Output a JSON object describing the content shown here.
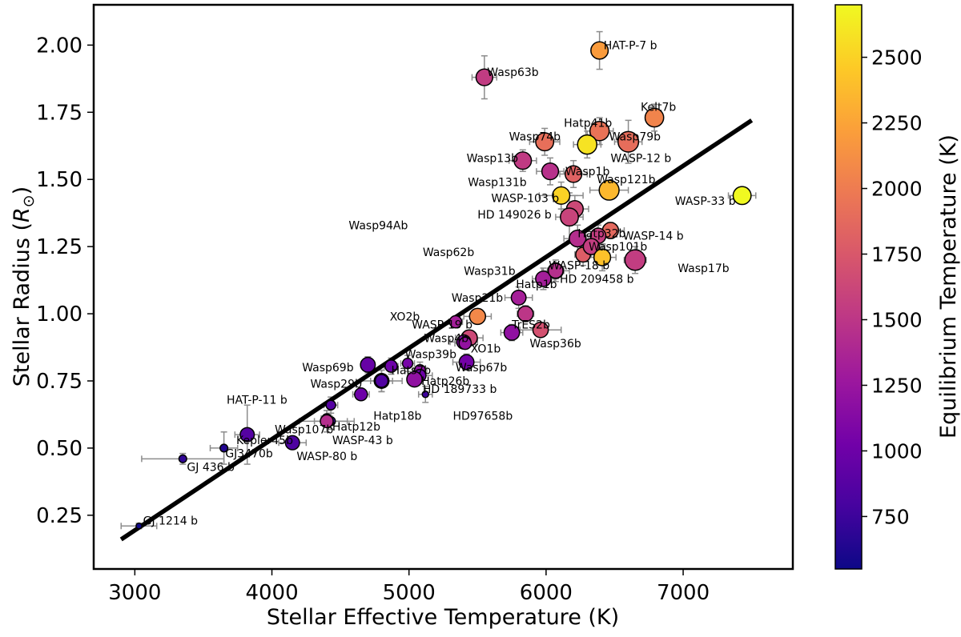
{
  "chart_data": {
    "type": "scatter",
    "title": "",
    "xlabel": "Stellar Effective Temperature (K)",
    "ylabel": "Stellar Radius (R☉)",
    "xlim": [
      2700,
      7800
    ],
    "ylim": [
      0.05,
      2.15
    ],
    "xticks": [
      3000,
      4000,
      5000,
      6000,
      7000
    ],
    "yticks": [
      0.25,
      0.5,
      0.75,
      1.0,
      1.25,
      1.5,
      1.75,
      2.0
    ],
    "xtick_labels": [
      "3000",
      "4000",
      "5000",
      "6000",
      "7000"
    ],
    "ytick_labels": [
      "0.25",
      "0.50",
      "0.75",
      "1.00",
      "1.25",
      "1.50",
      "1.75",
      "2.00"
    ],
    "grid": false,
    "colorbar": {
      "label": "Equilibrium Temperature (K)",
      "range": [
        550,
        2700
      ],
      "ticks": [
        750,
        1000,
        1250,
        1500,
        1750,
        2000,
        2250,
        2500
      ],
      "tick_labels": [
        "750",
        "1000",
        "1250",
        "1500",
        "1750",
        "2000",
        "2250",
        "2500"
      ],
      "colormap": [
        "#0d0887",
        "#46039f",
        "#7201a8",
        "#9c179e",
        "#bd3786",
        "#d8576b",
        "#ed7953",
        "#fb9f3a",
        "#fdca26",
        "#f0f921"
      ]
    },
    "fit_line": {
      "x": [
        2900,
        7500
      ],
      "y": [
        0.16,
        1.72
      ],
      "color": "#000000"
    },
    "points": [
      {
        "name": "HAT-P-7 b",
        "teff": 6390,
        "radius": 1.98,
        "teq": 2200,
        "size": 2.7,
        "xerr": 60,
        "yerr": 0.07
      },
      {
        "name": "Wasp63b",
        "teff": 5550,
        "radius": 1.88,
        "teq": 1540,
        "size": 2.6,
        "xerr": 90,
        "yerr": 0.08
      },
      {
        "name": "Kelt7b",
        "teff": 6790,
        "radius": 1.73,
        "teq": 2050,
        "size": 2.9,
        "xerr": 60,
        "yerr": 0.05
      },
      {
        "name": "Hatp41b",
        "teff": 6390,
        "radius": 1.68,
        "teq": 1940,
        "size": 3.0,
        "xerr": 100,
        "yerr": 0.05
      },
      {
        "name": "Wasp74b",
        "teff": 5990,
        "radius": 1.64,
        "teq": 1910,
        "size": 2.8,
        "xerr": 110,
        "yerr": 0.05
      },
      {
        "name": "Wasp79b",
        "teff": 6600,
        "radius": 1.64,
        "teq": 1900,
        "size": 3.2,
        "xerr": 100,
        "yerr": 0.08
      },
      {
        "name": "",
        "teff": 6300,
        "radius": 1.63,
        "teq": 2590,
        "size": 3.0,
        "xerr": 100,
        "yerr": 0.05
      },
      {
        "name": "Wasp13b",
        "teff": 5830,
        "radius": 1.57,
        "teq": 1530,
        "size": 2.7,
        "xerr": 100,
        "yerr": 0.04
      },
      {
        "name": "Wasp131b",
        "teff": 6030,
        "radius": 1.53,
        "teq": 1460,
        "size": 2.6,
        "xerr": 100,
        "yerr": 0.05
      },
      {
        "name": "Wasp1b",
        "teff": 6200,
        "radius": 1.52,
        "teq": 1820,
        "size": 2.6,
        "xerr": 100,
        "yerr": 0.05
      },
      {
        "name": "Wasp121b",
        "teff": 6460,
        "radius": 1.46,
        "teq": 2360,
        "size": 3.1,
        "xerr": 140,
        "yerr": 0.03
      },
      {
        "name": "WASP-103 b",
        "teff": 6110,
        "radius": 1.44,
        "teq": 2500,
        "size": 2.7,
        "xerr": 160,
        "yerr": 0.05
      },
      {
        "name": "WASP-33 b",
        "teff": 7430,
        "radius": 1.44,
        "teq": 2710,
        "size": 2.8,
        "xerr": 100,
        "yerr": 0.03
      },
      {
        "name": "HD 149026 b",
        "teff": 6210,
        "radius": 1.39,
        "teq": 1640,
        "size": 2.6,
        "xerr": 100,
        "yerr": 0.05
      },
      {
        "name": "Wasp94Ab",
        "teff": 6170,
        "radius": 1.36,
        "teq": 1600,
        "size": 2.8,
        "xerr": 100,
        "yerr": 0.09
      },
      {
        "name": "Hatp32b",
        "teff": 6270,
        "radius": 1.22,
        "teq": 1790,
        "size": 2.3,
        "xerr": 60,
        "yerr": 0.04
      },
      {
        "name": "WASP-14 b",
        "teff": 6470,
        "radius": 1.31,
        "teq": 1870,
        "size": 2.5,
        "xerr": 100,
        "yerr": 0.03
      },
      {
        "name": "Wasp62b",
        "teff": 6230,
        "radius": 1.28,
        "teq": 1440,
        "size": 2.6,
        "xerr": 100,
        "yerr": 0.05
      },
      {
        "name": "",
        "teff": 6380,
        "radius": 1.29,
        "teq": 1560,
        "size": 2.4,
        "xerr": 90,
        "yerr": 0.04
      },
      {
        "name": "Wasp101b",
        "teff": 6330,
        "radius": 1.25,
        "teq": 1560,
        "size": 2.5,
        "xerr": 100,
        "yerr": 0.04
      },
      {
        "name": "WASP-18 b",
        "teff": 6410,
        "radius": 1.21,
        "teq": 2410,
        "size": 2.6,
        "xerr": 100,
        "yerr": 0.05
      },
      {
        "name": "Wasp17b",
        "teff": 6650,
        "radius": 1.2,
        "teq": 1550,
        "size": 3.2,
        "xerr": 80,
        "yerr": 0.05
      },
      {
        "name": "Wasp31b",
        "teff": 6070,
        "radius": 1.16,
        "teq": 1390,
        "size": 2.4,
        "xerr": 100,
        "yerr": 0.04
      },
      {
        "name": "Hatp1b",
        "teff": 5980,
        "radius": 1.13,
        "teq": 1320,
        "size": 2.4,
        "xerr": 80,
        "yerr": 0.04
      },
      {
        "name": "HD 209458 b",
        "teff": 6070,
        "radius": 1.16,
        "teq": 1450,
        "size": 2.3,
        "xerr": 60,
        "yerr": 0.03
      },
      {
        "name": "Wasp21b",
        "teff": 5800,
        "radius": 1.06,
        "teq": 1330,
        "size": 2.3,
        "xerr": 100,
        "yerr": 0.04
      },
      {
        "name": "TrES2b",
        "teff": 5850,
        "radius": 1.0,
        "teq": 1500,
        "size": 2.4,
        "xerr": 60,
        "yerr": 0.03
      },
      {
        "name": "WASP-19 b",
        "teff": 5500,
        "radius": 0.99,
        "teq": 2080,
        "size": 2.5,
        "xerr": 100,
        "yerr": 0.02
      },
      {
        "name": "XO2b",
        "teff": 5340,
        "radius": 0.97,
        "teq": 1320,
        "size": 1.9,
        "xerr": 50,
        "yerr": 0.02
      },
      {
        "name": "Wasp36b",
        "teff": 5960,
        "radius": 0.94,
        "teq": 1700,
        "size": 2.4,
        "xerr": 150,
        "yerr": 0.02
      },
      {
        "name": "",
        "teff": 5750,
        "radius": 0.93,
        "teq": 1200,
        "size": 2.4,
        "xerr": 80,
        "yerr": 0.03
      },
      {
        "name": "Wasp4b",
        "teff": 5440,
        "radius": 0.91,
        "teq": 1640,
        "size": 2.5,
        "xerr": 100,
        "yerr": 0.02
      },
      {
        "name": "Wasp39b",
        "teff": 5400,
        "radius": 0.895,
        "teq": 1120,
        "size": 2.2,
        "xerr": 100,
        "yerr": 0.02
      },
      {
        "name": "XO1b",
        "teff": 5410,
        "radius": 0.89,
        "teq": 1210,
        "size": 1.9,
        "xerr": 75,
        "yerr": 0.02
      },
      {
        "name": "Wasp67b",
        "teff": 5420,
        "radius": 0.82,
        "teq": 1040,
        "size": 2.3,
        "xerr": 100,
        "yerr": 0.03
      },
      {
        "name": "Wasp69b",
        "teff": 4700,
        "radius": 0.81,
        "teq": 960,
        "size": 2.3,
        "xerr": 50,
        "yerr": 0.03
      },
      {
        "name": "Hats7b",
        "teff": 4990,
        "radius": 0.815,
        "teq": 1050,
        "size": 1.6,
        "xerr": 50,
        "yerr": 0.03
      },
      {
        "name": "",
        "teff": 4870,
        "radius": 0.805,
        "teq": 1000,
        "size": 1.9,
        "xerr": 50,
        "yerr": 0.03
      },
      {
        "name": "",
        "teff": 5080,
        "radius": 0.79,
        "teq": 1170,
        "size": 1.7,
        "xerr": 50,
        "yerr": 0.03
      },
      {
        "name": "Hatp26b",
        "teff": 5080,
        "radius": 0.77,
        "teq": 1000,
        "size": 1.9,
        "xerr": 90,
        "yerr": 0.03
      },
      {
        "name": "Wasp29b",
        "teff": 4800,
        "radius": 0.75,
        "teq": 990,
        "size": 2.3,
        "xerr": 150,
        "yerr": 0.04
      },
      {
        "name": "HD 189733 b",
        "teff": 5040,
        "radius": 0.756,
        "teq": 1200,
        "size": 2.4,
        "xerr": 50,
        "yerr": 0.02
      },
      {
        "name": "Hatp18b",
        "teff": 4800,
        "radius": 0.75,
        "teq": 850,
        "size": 2.0,
        "xerr": 80,
        "yerr": 0.04
      },
      {
        "name": "",
        "teff": 4650,
        "radius": 0.7,
        "teq": 1000,
        "size": 2.0,
        "xerr": 60,
        "yerr": 0.02
      },
      {
        "name": "HD97658b",
        "teff": 5120,
        "radius": 0.7,
        "teq": 750,
        "size": 1.0,
        "xerr": 50,
        "yerr": 0.03
      },
      {
        "name": "HAT-P-11 b",
        "teff": 4430,
        "radius": 0.66,
        "teq": 870,
        "size": 1.5,
        "xerr": 50,
        "yerr": 0.03
      },
      {
        "name": "Hatp12b",
        "teff": 4400,
        "radius": 0.61,
        "teq": 960,
        "size": 1.5,
        "xerr": 40,
        "yerr": 0.03
      },
      {
        "name": "Wasp107b",
        "teff": 4430,
        "radius": 0.6,
        "teq": 770,
        "size": 1.4,
        "xerr": 120,
        "yerr": 0.03
      },
      {
        "name": "WASP-43 b",
        "teff": 4400,
        "radius": 0.6,
        "teq": 1440,
        "size": 2.0,
        "xerr": 200,
        "yerr": 0.04
      },
      {
        "name": "Kepler45b",
        "teff": 3820,
        "radius": 0.55,
        "teq": 870,
        "size": 2.2,
        "xerr": 90,
        "yerr": 0.11
      },
      {
        "name": "WASP-80 b",
        "teff": 4150,
        "radius": 0.52,
        "teq": 830,
        "size": 2.2,
        "xerr": 100,
        "yerr": 0.02
      },
      {
        "name": "GJ3470b",
        "teff": 3650,
        "radius": 0.5,
        "teq": 640,
        "size": 1.2,
        "xerr": 100,
        "yerr": 0.06
      },
      {
        "name": "GJ 436 b",
        "teff": 3350,
        "radius": 0.46,
        "teq": 700,
        "size": 1.2,
        "xerr": 300,
        "yerr": 0.02
      },
      {
        "name": "GJ 1214 b",
        "teff": 3030,
        "radius": 0.21,
        "teq": 560,
        "size": 0.9,
        "xerr": 130,
        "yerr": 0.01
      }
    ],
    "labels": [
      {
        "text": "HAT-P-7 b",
        "teff": 6420,
        "radius": 2.0
      },
      {
        "text": "Wasp63b",
        "teff": 5570,
        "radius": 1.9
      },
      {
        "text": "Kelt7b",
        "teff": 6690,
        "radius": 1.77
      },
      {
        "text": "Hatp41b",
        "teff": 6130,
        "radius": 1.71
      },
      {
        "text": "Wasp74b",
        "teff": 5730,
        "radius": 1.66
      },
      {
        "text": "Wasp79b",
        "teff": 6460,
        "radius": 1.66
      },
      {
        "text": "WASP-12 b",
        "teff": 6470,
        "radius": 1.58
      },
      {
        "text": "Wasp13b",
        "teff": 5420,
        "radius": 1.58
      },
      {
        "text": "Wasp131b",
        "teff": 5430,
        "radius": 1.49
      },
      {
        "text": "Wasp1b",
        "teff": 6140,
        "radius": 1.53
      },
      {
        "text": "Wasp121b",
        "teff": 6370,
        "radius": 1.5
      },
      {
        "text": "WASP-103 b",
        "teff": 5600,
        "radius": 1.43
      },
      {
        "text": "WASP-33 b",
        "teff": 6940,
        "radius": 1.42
      },
      {
        "text": "HD 149026 b",
        "teff": 5500,
        "radius": 1.37
      },
      {
        "text": "Wasp94Ab",
        "teff": 4560,
        "radius": 1.33
      },
      {
        "text": "Hatp32b",
        "teff": 6230,
        "radius": 1.3
      },
      {
        "text": "WASP-14 b",
        "teff": 6560,
        "radius": 1.29
      },
      {
        "text": "Wasp62b",
        "teff": 5100,
        "radius": 1.23
      },
      {
        "text": "Wasp31b",
        "teff": 5400,
        "radius": 1.16
      },
      {
        "text": "Wasp101b",
        "teff": 6310,
        "radius": 1.25
      },
      {
        "text": "WASP-18 b",
        "teff": 6020,
        "radius": 1.18
      },
      {
        "text": "Wasp17b",
        "teff": 6960,
        "radius": 1.17
      },
      {
        "text": "Hatp1b",
        "teff": 5780,
        "radius": 1.11
      },
      {
        "text": "HD 209458 b",
        "teff": 6100,
        "radius": 1.13
      },
      {
        "text": "Wasp21b",
        "teff": 5310,
        "radius": 1.06
      },
      {
        "text": "WASP-19 b",
        "teff": 5020,
        "radius": 0.96
      },
      {
        "text": "TrES2b",
        "teff": 5750,
        "radius": 0.96
      },
      {
        "text": "XO2b",
        "teff": 4860,
        "radius": 0.99
      },
      {
        "text": "Wasp36b",
        "teff": 5880,
        "radius": 0.89
      },
      {
        "text": "Wasp4b",
        "teff": 5110,
        "radius": 0.91
      },
      {
        "text": "XO1b",
        "teff": 5450,
        "radius": 0.87
      },
      {
        "text": "Wasp39b",
        "teff": 4970,
        "radius": 0.85
      },
      {
        "text": "Wasp67b",
        "teff": 5340,
        "radius": 0.8
      },
      {
        "text": "Wasp69b",
        "teff": 4220,
        "radius": 0.8
      },
      {
        "text": "Hats7b",
        "teff": 4870,
        "radius": 0.79
      },
      {
        "text": "Wasp29b",
        "teff": 4280,
        "radius": 0.74
      },
      {
        "text": "Hatp26b",
        "teff": 5090,
        "radius": 0.75
      },
      {
        "text": "HD 189733 b",
        "teff": 5100,
        "radius": 0.72
      },
      {
        "text": "HAT-P-11 b",
        "teff": 3670,
        "radius": 0.68
      },
      {
        "text": "Hatp18b",
        "teff": 4740,
        "radius": 0.62
      },
      {
        "text": "HD97658b",
        "teff": 5320,
        "radius": 0.62
      },
      {
        "text": "Wasp107b",
        "teff": 4020,
        "radius": 0.57
      },
      {
        "text": "Hatp12b",
        "teff": 4440,
        "radius": 0.58
      },
      {
        "text": "Kepler45b",
        "teff": 3740,
        "radius": 0.53
      },
      {
        "text": "WASP-43 b",
        "teff": 4440,
        "radius": 0.53
      },
      {
        "text": "GJ3470b",
        "teff": 3660,
        "radius": 0.48
      },
      {
        "text": "WASP-80 b",
        "teff": 4180,
        "radius": 0.47
      },
      {
        "text": "GJ 436 b",
        "teff": 3380,
        "radius": 0.43
      },
      {
        "text": "GJ 1214 b",
        "teff": 3060,
        "radius": 0.23
      }
    ]
  }
}
